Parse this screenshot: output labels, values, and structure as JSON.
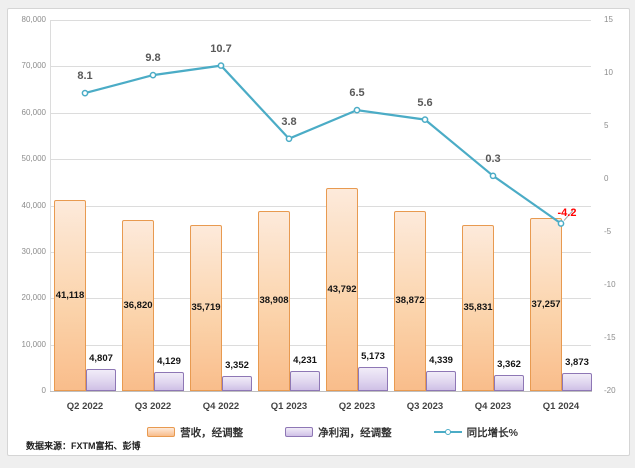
{
  "source_note": "数据来源：FXTM富拓、彭博",
  "colors": {
    "revenue_fill_top": "#FDEADB",
    "revenue_fill_bottom": "#F9BD8B",
    "revenue_border": "#E89A50",
    "profit_fill_top": "#F1ECF8",
    "profit_fill_bottom": "#CFC0E6",
    "profit_border": "#8E77B5",
    "line": "#4BACC6",
    "gridline": "#DCDCDC",
    "axis_text": "#8C8C8C",
    "line_label_text": "#595959",
    "negative_label": "#FF0000"
  },
  "chart_data": {
    "type": "bar",
    "subtype": "combo-bar-line",
    "categories": [
      "Q2 2022",
      "Q3 2022",
      "Q4 2022",
      "Q1 2023",
      "Q2 2023",
      "Q3 2023",
      "Q4 2023",
      "Q1 2024"
    ],
    "series": [
      {
        "name": "营收，经调整",
        "type": "bar",
        "axis": "left",
        "values": [
          41118,
          36820,
          35719,
          38908,
          43792,
          38872,
          35831,
          37257
        ],
        "labels": [
          "41,118",
          "36,820",
          "35,719",
          "38,908",
          "43,792",
          "38,872",
          "35,831",
          "37,257"
        ]
      },
      {
        "name": "净利润，经调整",
        "type": "bar",
        "axis": "left",
        "values": [
          4807,
          4129,
          3352,
          4231,
          5173,
          4339,
          3362,
          3873
        ],
        "labels": [
          "4,807",
          "4,129",
          "3,352",
          "4,231",
          "5,173",
          "4,339",
          "3,362",
          "3,873"
        ]
      },
      {
        "name": "同比增长%",
        "type": "line",
        "axis": "right",
        "values": [
          8.1,
          9.8,
          10.7,
          3.8,
          6.5,
          5.6,
          0.3,
          -4.2
        ],
        "labels": [
          "8.1",
          "9.8",
          "10.7",
          "3.8",
          "6.5",
          "5.6",
          "0.3",
          "-4.2"
        ]
      }
    ],
    "left_axis": {
      "min": 0,
      "max": 80000,
      "step": 10000,
      "tick_labels": [
        "80,000",
        "70,000",
        "60,000",
        "50,000",
        "40,000",
        "30,000",
        "20,000",
        "10,000",
        "0"
      ]
    },
    "right_axis": {
      "min": -20,
      "max": 15,
      "step": 5,
      "tick_labels": [
        "15",
        "10",
        "5",
        "0",
        "-5",
        "-10",
        "-15",
        "-20"
      ],
      "tick_values": [
        15,
        10,
        5,
        0,
        -5,
        -10,
        -15,
        -20
      ]
    },
    "grid": true,
    "legend_position": "bottom",
    "title": ""
  }
}
